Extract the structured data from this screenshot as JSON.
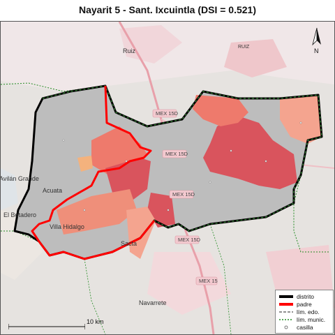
{
  "title": "Nayarit 5 - Sant. Ixcuintla (DSI = 0.521)",
  "north_label": "N",
  "scale_label": "10 km",
  "places": {
    "ruiz_1": "Ruiz",
    "ruiz_2": "RUIZ",
    "villa_hidalgo": "Villa Hidalgo",
    "sacta": "Sacta",
    "navarrete": "Navarrete",
    "el_botadero": "El Botadero",
    "avilan_grande": "Avilán Grande",
    "acuata": "Acuata"
  },
  "roads": {
    "mex15d_1": "MEX 15D",
    "mex15d_2": "MEX 15D",
    "mex15d_3": "MEX 15D",
    "mex15d_4": "MEX 15D",
    "mex15": "MEX 15"
  },
  "legend": {
    "items": [
      {
        "label": "distrito",
        "color": "#000000",
        "style": "thick"
      },
      {
        "label": "padre",
        "color": "#ff0000",
        "style": "thick"
      },
      {
        "label": "lím. edo.",
        "color": "#222222",
        "style": "dash"
      },
      {
        "label": "lím. munic.",
        "color": "#228b22",
        "style": "dotted"
      },
      {
        "label": "casilla",
        "color": "#ffffff",
        "style": "circle"
      }
    ]
  },
  "colors": {
    "district_fill": "#bdbdbd",
    "high": "#d9505a",
    "mid": "#ee7766",
    "low": "#f4a48f",
    "outline_district": "#000000",
    "outline_parent": "#ff0000",
    "municipal": "#228b22"
  }
}
